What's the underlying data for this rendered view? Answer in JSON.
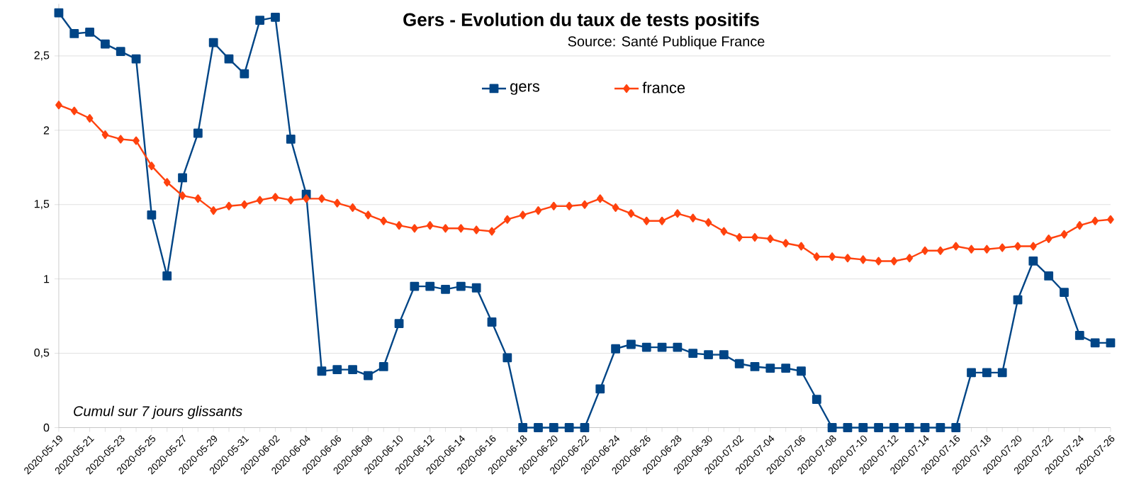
{
  "chart_data": {
    "type": "line",
    "title": "Gers - Evolution du taux de tests positifs",
    "subtitle": "Source: Santé Publique France",
    "categories": [
      "2020-05-19",
      null,
      "2020-05-21",
      null,
      "2020-05-23",
      null,
      "2020-05-25",
      null,
      "2020-05-27",
      null,
      "2020-05-29",
      null,
      "2020-05-31",
      null,
      "2020-06-02",
      null,
      "2020-06-04",
      null,
      "2020-06-06",
      null,
      "2020-06-08",
      null,
      "2020-06-10",
      null,
      "2020-06-12",
      null,
      "2020-06-14",
      null,
      "2020-06-16",
      null,
      "2020-06-18",
      null,
      "2020-06-20",
      null,
      "2020-06-22",
      null,
      "2020-06-24",
      null,
      "2020-06-26",
      null,
      "2020-06-28",
      null,
      "2020-06-30",
      null,
      "2020-07-02",
      null,
      "2020-07-04",
      null,
      "2020-07-06",
      null,
      "2020-07-08",
      null,
      "2020-07-10",
      null,
      "2020-07-12",
      null,
      "2020-07-14",
      null,
      "2020-07-16",
      null,
      "2020-07-18",
      null,
      "2020-07-20",
      null,
      "2020-07-22",
      null,
      "2020-07-24",
      null,
      "2020-07-26"
    ],
    "series": [
      {
        "name": "gers",
        "color": "#004586",
        "marker": "square",
        "values": [
          2.79,
          2.65,
          2.66,
          2.58,
          2.53,
          2.48,
          1.43,
          1.02,
          1.68,
          1.98,
          2.59,
          2.48,
          2.38,
          2.74,
          2.76,
          1.94,
          1.57,
          0.38,
          0.39,
          0.39,
          0.35,
          0.41,
          0.7,
          0.95,
          0.95,
          0.93,
          0.95,
          0.94,
          0.71,
          0.47,
          0,
          0,
          0,
          0,
          0,
          0.26,
          0.53,
          0.56,
          0.54,
          0.54,
          0.54,
          0.5,
          0.49,
          0.49,
          0.43,
          0.41,
          0.4,
          0.4,
          0.38,
          0.19,
          0,
          0,
          0,
          0,
          0,
          0,
          0,
          0,
          0,
          0.37,
          0.37,
          0.37,
          0.86,
          1.12,
          1.02,
          0.91,
          0.62,
          0.57,
          0.57
        ]
      },
      {
        "name": "france",
        "color": "#ff420e",
        "marker": "diamond",
        "values": [
          2.17,
          2.13,
          2.08,
          1.97,
          1.94,
          1.93,
          1.76,
          1.65,
          1.56,
          1.54,
          1.46,
          1.49,
          1.5,
          1.53,
          1.55,
          1.53,
          1.54,
          1.54,
          1.51,
          1.48,
          1.43,
          1.39,
          1.36,
          1.34,
          1.36,
          1.34,
          1.34,
          1.33,
          1.32,
          1.4,
          1.43,
          1.46,
          1.49,
          1.49,
          1.5,
          1.54,
          1.48,
          1.44,
          1.39,
          1.39,
          1.44,
          1.41,
          1.38,
          1.32,
          1.28,
          1.28,
          1.27,
          1.24,
          1.22,
          1.15,
          1.15,
          1.14,
          1.13,
          1.12,
          1.12,
          1.14,
          1.19,
          1.19,
          1.22,
          1.2,
          1.2,
          1.21,
          1.22,
          1.22,
          1.27,
          1.3,
          1.36,
          1.39,
          1.4
        ]
      }
    ],
    "ylim": [
      0,
      2.85
    ],
    "yticks": [
      0,
      {
        "value": 0.5,
        "label": "0,5"
      },
      1,
      {
        "value": 1.5,
        "label": "1,5"
      },
      2,
      {
        "value": 2.5,
        "label": "2,5"
      }
    ],
    "grid": "y",
    "legend": "top",
    "line_style": "solid",
    "annotations": [
      "Cumul sur 7 jours glissants"
    ]
  }
}
